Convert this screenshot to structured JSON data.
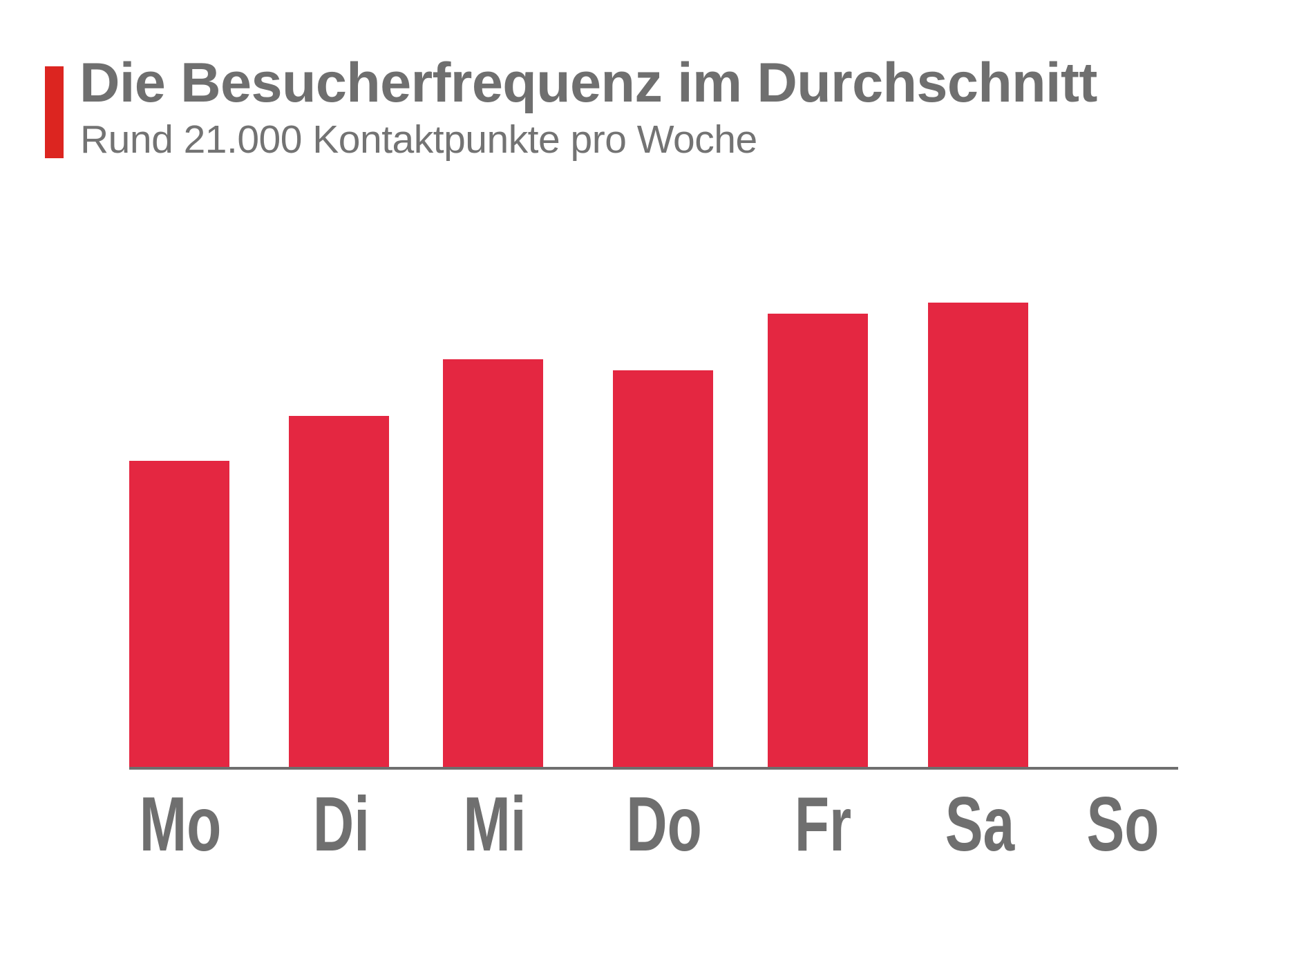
{
  "header": {
    "title": "Die Besucherfrequenz im Durchschnitt",
    "subtitle": "Rund 21.000 Kontaktpunkte pro Woche"
  },
  "colors": {
    "accent": "#dc2520",
    "bar": "#e42741",
    "text": "#6f6f6f",
    "axis": "#6e6e6e"
  },
  "chart_data": {
    "type": "bar",
    "title": "Die Besucherfrequenz im Durchschnitt",
    "subtitle": "Rund 21.000 Kontaktpunkte pro Woche",
    "xlabel": "",
    "ylabel": "",
    "categories": [
      "Mo",
      "Di",
      "Mi",
      "Do",
      "Fr",
      "Sa",
      "So"
    ],
    "values": [
      2700,
      3100,
      3600,
      3500,
      4000,
      4100,
      0
    ],
    "values_note": "Estimated from bar heights; no y-axis shown. Bar heights scaled so the weekly total is ~21,000 as stated in the subtitle.",
    "ylim": [
      0,
      4500
    ],
    "grid": false,
    "legend": null,
    "y_axis_visible": false
  },
  "labels": [
    "Mo",
    "Di",
    "Mi",
    "Do",
    "Fr",
    "Sa",
    "So"
  ]
}
